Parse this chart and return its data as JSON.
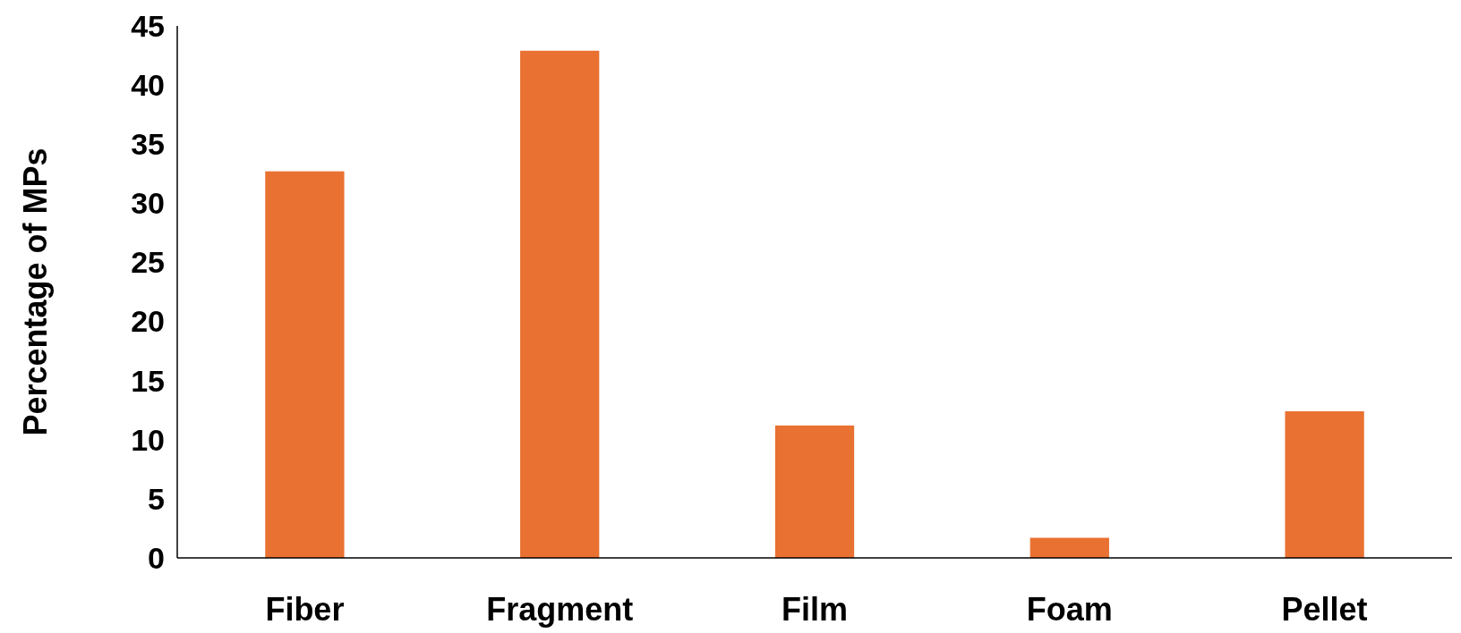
{
  "chart_data": {
    "type": "bar",
    "ylabel": "Percentage of MPs",
    "categories": [
      "Fiber",
      "Fragment",
      "Film",
      "Foam",
      "Pellet"
    ],
    "values": [
      32.7,
      42.9,
      11.2,
      1.7,
      12.4
    ],
    "color": "#e97132",
    "ylim": [
      0,
      45
    ],
    "yticks": [
      0,
      5,
      10,
      15,
      20,
      25,
      30,
      35,
      40,
      45
    ],
    "grid": false
  }
}
